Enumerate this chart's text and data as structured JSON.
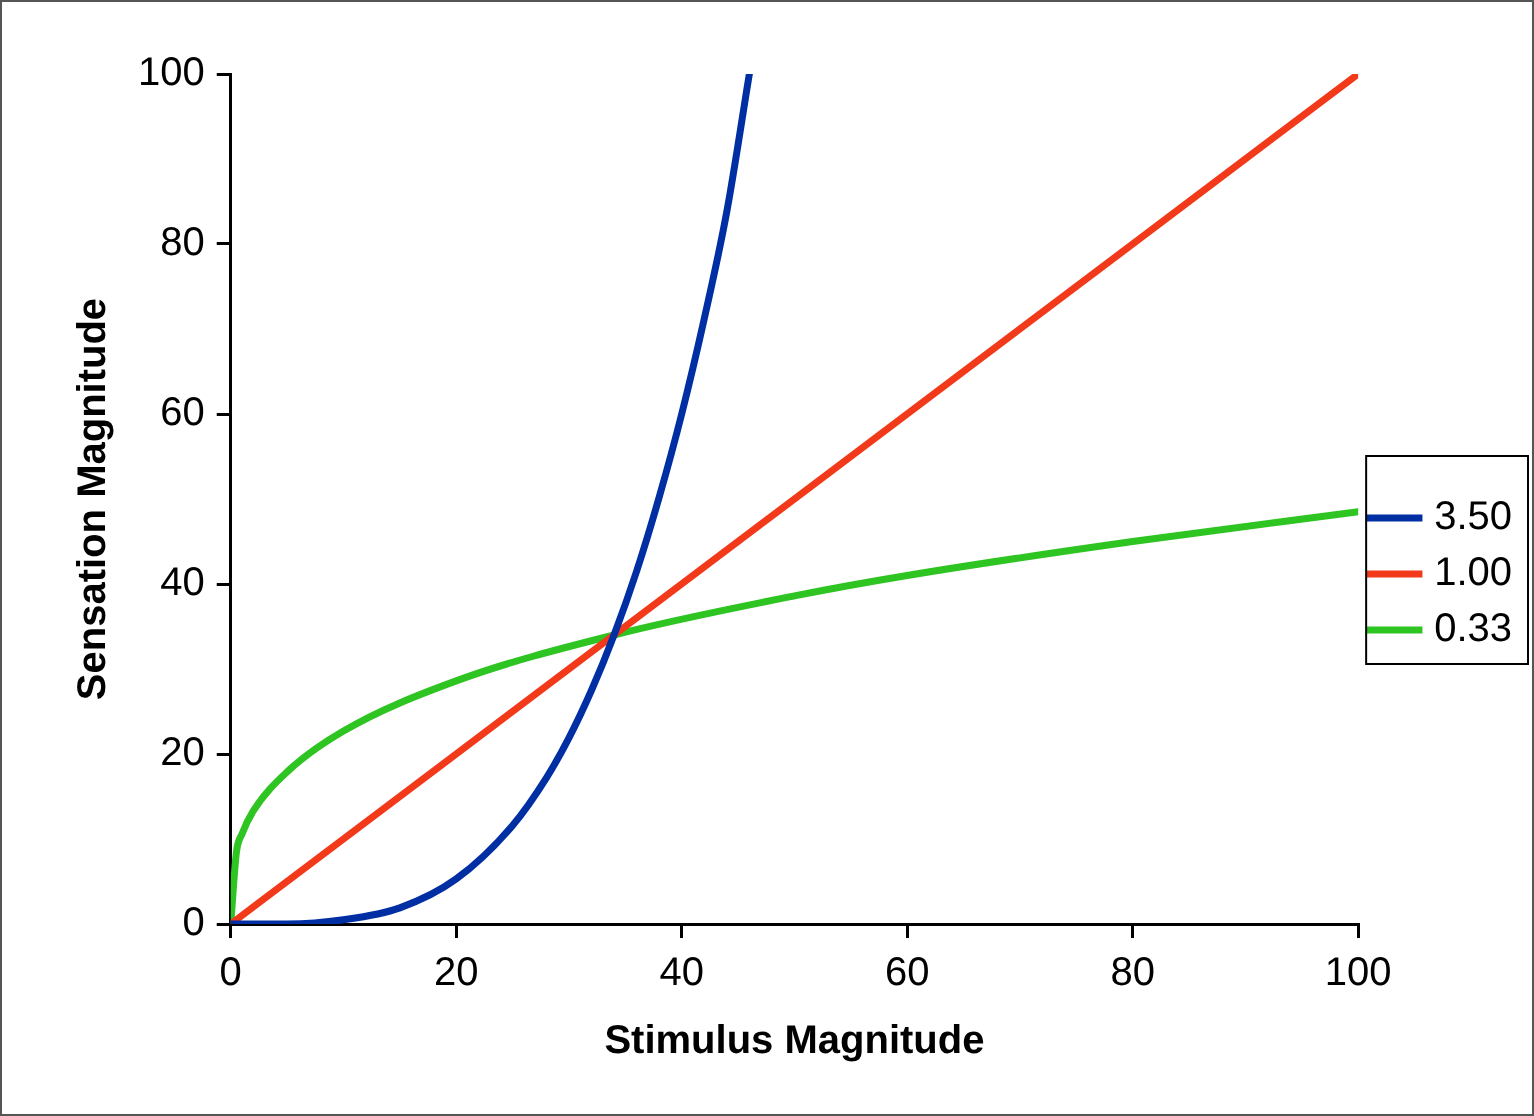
{
  "chart_data": {
    "type": "line",
    "xlabel": "Stimulus Magnitude",
    "ylabel": "Sensation Magnitude",
    "xlim": [
      0,
      100
    ],
    "xticks": [
      0,
      20,
      40,
      60,
      80,
      100
    ],
    "ylim": [
      0,
      100
    ],
    "yticks": [
      0,
      20,
      40,
      60,
      80,
      100
    ],
    "grid": false,
    "legend": "right",
    "marker": "none",
    "line_style": "solid",
    "series": [
      {
        "name": "3.50",
        "color": "#002ea3",
        "x": [
          0,
          5,
          10,
          15,
          20,
          25,
          28,
          30,
          32,
          34,
          36,
          38,
          40,
          42,
          44,
          46
        ],
        "values": [
          0,
          0,
          0.5,
          1.9,
          5.3,
          11.6,
          17.2,
          21.9,
          27.5,
          34,
          41.5,
          50.2,
          60,
          71.2,
          83.8,
          100
        ]
      },
      {
        "name": "1.00",
        "color": "#f23a1a",
        "x": [
          0,
          100
        ],
        "values": [
          0,
          100
        ]
      },
      {
        "name": "0.33",
        "color": "#2ec421",
        "x": [
          0,
          0.5,
          1,
          2,
          5,
          10,
          20,
          34,
          50,
          60,
          80,
          100
        ],
        "values": [
          0,
          8.4,
          10.6,
          13.3,
          17.9,
          22.7,
          28.6,
          34,
          38.6,
          41,
          45,
          48.5
        ]
      }
    ]
  }
}
